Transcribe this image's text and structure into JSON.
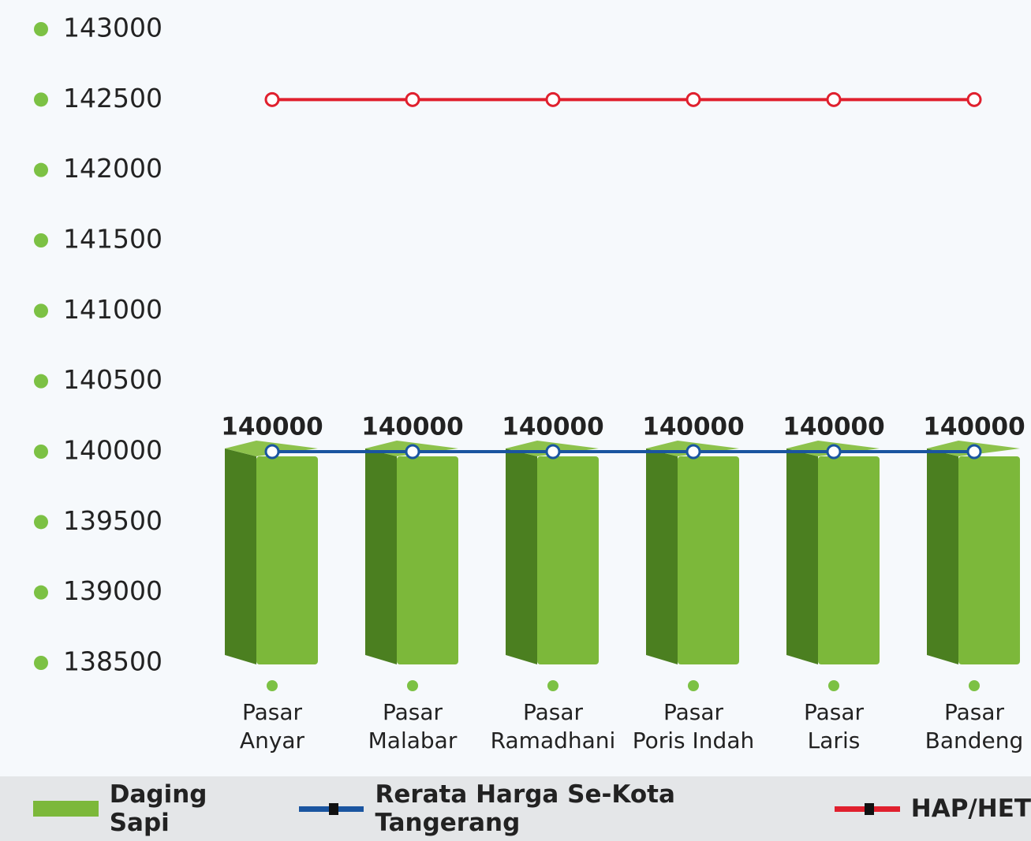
{
  "chart_data": {
    "type": "bar",
    "categories": [
      "Pasar\nAnyar",
      "Pasar\nMalabar",
      "Pasar\nRamadhani",
      "Pasar\nPoris Indah",
      "Pasar\nLaris",
      "Pasar\nBandeng"
    ],
    "series": [
      {
        "name": "Daging Sapi",
        "type": "bar",
        "color": "#7cb83a",
        "values": [
          140000,
          140000,
          140000,
          140000,
          140000,
          140000
        ]
      },
      {
        "name": "Rerata Harga Se-Kota Tangerang",
        "type": "line",
        "color": "#1a55a0",
        "values": [
          140000,
          140000,
          140000,
          140000,
          140000,
          140000
        ]
      },
      {
        "name": "HAP/HET",
        "type": "line",
        "color": "#e0202e",
        "values": [
          142500,
          142500,
          142500,
          142500,
          142500,
          142500
        ]
      }
    ],
    "ylim": [
      138500,
      143000
    ],
    "yticks": [
      138500,
      139000,
      139500,
      140000,
      140500,
      141000,
      141500,
      142000,
      142500,
      143000
    ],
    "grid": false
  }
}
